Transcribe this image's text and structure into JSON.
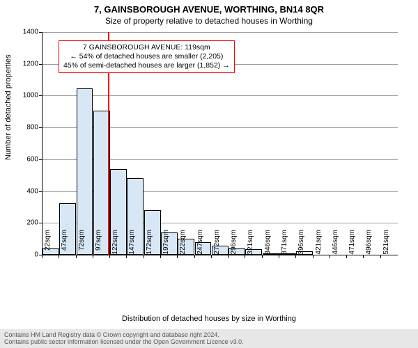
{
  "title": "7, GAINSBOROUGH AVENUE, WORTHING, BN14 8QR",
  "subtitle": "Size of property relative to detached houses in Worthing",
  "yaxis_label": "Number of detached properties",
  "xaxis_label": "Distribution of detached houses by size in Worthing",
  "footer_line1": "Contains HM Land Registry data © Crown copyright and database right 2024.",
  "footer_line2": "Contains public sector information licensed under the Open Government Licence v3.0.",
  "annot": {
    "l1": "7 GAINSBOROUGH AVENUE: 119sqm",
    "l2": "← 54% of detached houses are smaller (2,205)",
    "l3": "45% of semi-detached houses are larger (1,852) →"
  },
  "chart": {
    "type": "histogram",
    "ylim": [
      0,
      1400
    ],
    "yticks": [
      0,
      200,
      400,
      600,
      800,
      1000,
      1200,
      1400
    ],
    "bar_fill": "#d8e7f5",
    "bar_stroke": "#000000",
    "grid_color": "#999999",
    "refline_color": "#ff0000",
    "refline_x_sqm": 119,
    "x_start": 22,
    "x_step": 25,
    "categories": [
      "22sqm",
      "47sqm",
      "72sqm",
      "97sqm",
      "122sqm",
      "147sqm",
      "172sqm",
      "197sqm",
      "222sqm",
      "247sqm",
      "272sqm",
      "296sqm",
      "321sqm",
      "346sqm",
      "371sqm",
      "396sqm",
      "421sqm",
      "446sqm",
      "471sqm",
      "496sqm",
      "521sqm"
    ],
    "values": [
      40,
      325,
      1045,
      905,
      540,
      480,
      280,
      140,
      100,
      80,
      55,
      40,
      35,
      10,
      8,
      20,
      0,
      0,
      0,
      0,
      0
    ]
  }
}
